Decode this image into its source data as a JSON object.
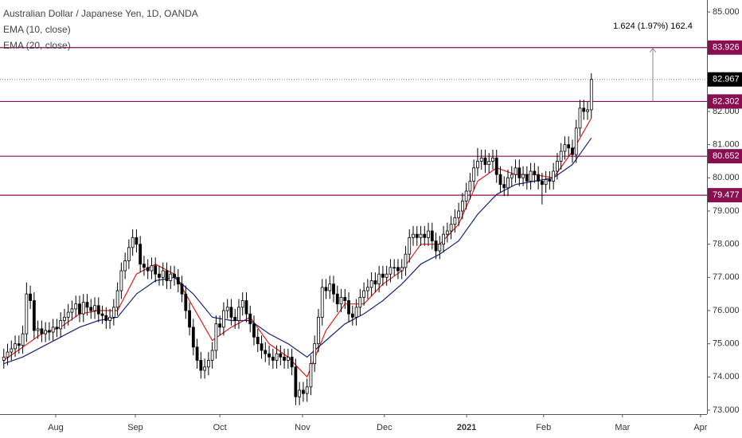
{
  "chart_data": {
    "type": "candlestick",
    "title": "Australian Dollar / Japanese Yen, 1D, OANDA",
    "up_color": "#ffffff",
    "down_color": "#000000",
    "edge_color": "#000000",
    "open": [
      74.5,
      74.6,
      74.75,
      74.85,
      75.0,
      74.95,
      75.3,
      76.5,
      76.3,
      75.4,
      75.45,
      75.3,
      75.4,
      75.35,
      75.5,
      75.45,
      75.7,
      75.8,
      75.95,
      76.05,
      76.2,
      75.9,
      76.25,
      76.1,
      76.0,
      76.15,
      75.9,
      75.85,
      75.7,
      75.8,
      76.1,
      76.6,
      77.2,
      77.5,
      77.9,
      78.2,
      78.0,
      77.4,
      77.3,
      77.2,
      77.35,
      77.1,
      77.0,
      77.2,
      76.9,
      77.1,
      77.0,
      76.8,
      76.5,
      76.0,
      75.5,
      74.9,
      74.5,
      74.2,
      74.3,
      74.5,
      74.8,
      75.6,
      75.5,
      76.0,
      76.1,
      75.8,
      75.7,
      76.1,
      76.3,
      75.9,
      75.6,
      75.2,
      75.0,
      74.8,
      74.7,
      74.6,
      74.5,
      74.7,
      74.6,
      74.5,
      74.6,
      74.3,
      73.4,
      73.6,
      73.5,
      73.7,
      74.4,
      75.0,
      75.8,
      76.7,
      76.6,
      76.8,
      76.5,
      76.2,
      76.4,
      76.3,
      75.9,
      75.8,
      76.1,
      76.4,
      76.6,
      76.7,
      76.9,
      76.8,
      77.1,
      77.0,
      77.1,
      77.3,
      77.3,
      77.2,
      77.3,
      77.7,
      78.2,
      78.3,
      78.2,
      78.3,
      78.2,
      78.4,
      78.1,
      77.8,
      78.0,
      78.3,
      78.4,
      78.6,
      78.8,
      79.0,
      79.3,
      79.6,
      79.9,
      80.3,
      80.5,
      80.6,
      80.4,
      80.5,
      80.6,
      80.1,
      79.8,
      79.7,
      80.0,
      80.1,
      80.3,
      80.0,
      80.1,
      79.9,
      80.2,
      80.1,
      79.9,
      79.8,
      79.95,
      79.9,
      80.2,
      80.5,
      80.8,
      81.0,
      80.9,
      80.7,
      81.5,
      82.1,
      82.0,
      82.05
    ],
    "high": [
      74.85,
      75.0,
      75.1,
      75.25,
      75.25,
      75.55,
      76.85,
      76.75,
      76.55,
      75.7,
      75.7,
      75.65,
      75.65,
      75.75,
      75.75,
      75.95,
      76.05,
      76.2,
      76.3,
      76.45,
      76.45,
      76.5,
      76.5,
      76.35,
      76.4,
      76.4,
      76.15,
      76.1,
      76.05,
      76.35,
      76.85,
      77.45,
      77.75,
      78.15,
      78.45,
      78.45,
      78.25,
      77.65,
      77.55,
      77.6,
      77.6,
      77.35,
      77.45,
      77.45,
      77.35,
      77.35,
      77.25,
      77.05,
      76.75,
      76.25,
      75.75,
      75.15,
      74.75,
      74.55,
      74.75,
      75.05,
      75.85,
      75.85,
      76.25,
      76.35,
      76.35,
      76.05,
      76.35,
      76.55,
      76.55,
      76.15,
      75.85,
      75.45,
      75.25,
      75.05,
      74.95,
      74.85,
      74.95,
      74.95,
      74.85,
      74.85,
      74.85,
      74.55,
      73.85,
      73.85,
      73.95,
      74.65,
      75.25,
      76.05,
      76.95,
      76.95,
      77.05,
      77.05,
      76.75,
      76.65,
      76.65,
      76.55,
      76.15,
      76.35,
      76.65,
      76.85,
      76.95,
      77.15,
      77.15,
      77.35,
      77.35,
      77.35,
      77.55,
      77.55,
      77.55,
      77.55,
      77.95,
      78.45,
      78.55,
      78.55,
      78.55,
      78.55,
      78.65,
      78.65,
      78.35,
      78.25,
      78.55,
      78.65,
      78.85,
      79.05,
      79.25,
      79.55,
      79.85,
      80.15,
      80.55,
      80.9,
      80.85,
      80.85,
      80.75,
      80.85,
      80.85,
      80.35,
      80.05,
      80.25,
      80.35,
      80.55,
      80.55,
      80.35,
      80.35,
      80.45,
      80.45,
      80.35,
      80.15,
      80.2,
      80.2,
      80.45,
      80.75,
      81.05,
      81.25,
      81.25,
      81.15,
      81.75,
      82.35,
      82.35,
      82.3,
      83.15
    ],
    "low": [
      74.25,
      74.35,
      74.5,
      74.6,
      74.7,
      74.7,
      75.05,
      76.05,
      75.15,
      75.15,
      75.05,
      75.05,
      75.1,
      75.1,
      75.2,
      75.2,
      75.45,
      75.55,
      75.7,
      75.8,
      75.65,
      75.65,
      75.85,
      75.75,
      75.75,
      75.65,
      75.6,
      75.45,
      75.45,
      75.55,
      75.85,
      76.35,
      76.95,
      77.25,
      77.65,
      77.75,
      77.15,
      77.05,
      76.95,
      76.95,
      76.85,
      76.75,
      76.75,
      76.65,
      76.65,
      76.75,
      76.55,
      76.25,
      75.75,
      75.25,
      74.65,
      74.25,
      73.95,
      73.95,
      74.05,
      74.25,
      74.55,
      75.25,
      75.25,
      75.75,
      75.55,
      75.45,
      75.45,
      75.85,
      75.65,
      75.35,
      74.95,
      74.75,
      74.55,
      74.45,
      74.35,
      74.25,
      74.25,
      74.35,
      74.25,
      74.25,
      74.05,
      73.15,
      73.15,
      73.25,
      73.25,
      73.45,
      74.15,
      74.75,
      75.55,
      76.35,
      76.35,
      76.25,
      75.95,
      75.95,
      76.05,
      75.65,
      75.55,
      75.55,
      75.85,
      76.15,
      76.35,
      76.45,
      76.55,
      76.55,
      76.75,
      76.75,
      76.85,
      77.05,
      76.95,
      76.95,
      77.05,
      77.45,
      77.95,
      77.95,
      77.95,
      77.95,
      77.95,
      77.85,
      77.55,
      77.55,
      77.75,
      78.05,
      78.15,
      78.35,
      78.55,
      78.75,
      79.05,
      79.35,
      79.65,
      80.05,
      80.25,
      80.15,
      80.15,
      80.25,
      79.85,
      79.55,
      79.45,
      79.45,
      79.75,
      79.85,
      79.75,
      79.75,
      79.65,
      79.65,
      79.85,
      79.65,
      79.2,
      79.55,
      79.65,
      79.65,
      79.95,
      80.25,
      80.55,
      80.65,
      80.45,
      80.45,
      81.25,
      81.75,
      81.75,
      81.8
    ],
    "close": [
      74.6,
      74.75,
      74.85,
      75.0,
      74.95,
      75.3,
      76.5,
      76.3,
      75.4,
      75.45,
      75.3,
      75.4,
      75.35,
      75.5,
      75.45,
      75.7,
      75.8,
      75.95,
      76.05,
      76.2,
      75.9,
      76.25,
      76.1,
      76.0,
      76.15,
      75.9,
      75.85,
      75.7,
      75.8,
      76.1,
      76.6,
      77.2,
      77.5,
      77.9,
      78.2,
      78.0,
      77.4,
      77.3,
      77.2,
      77.35,
      77.1,
      77.0,
      77.2,
      76.9,
      77.1,
      77.0,
      76.8,
      76.5,
      76.0,
      75.5,
      74.9,
      74.5,
      74.2,
      74.3,
      74.5,
      74.8,
      75.6,
      75.5,
      76.0,
      76.1,
      75.8,
      75.7,
      76.1,
      76.3,
      75.9,
      75.6,
      75.2,
      75.0,
      74.8,
      74.7,
      74.6,
      74.5,
      74.7,
      74.6,
      74.5,
      74.6,
      74.3,
      73.4,
      73.6,
      73.5,
      73.7,
      74.4,
      75.0,
      75.8,
      76.7,
      76.6,
      76.8,
      76.5,
      76.2,
      76.4,
      76.3,
      75.9,
      75.8,
      76.1,
      76.4,
      76.6,
      76.7,
      76.9,
      76.8,
      77.1,
      77.0,
      77.1,
      77.3,
      77.3,
      77.2,
      77.3,
      77.7,
      78.2,
      78.3,
      78.2,
      78.3,
      78.2,
      78.4,
      78.1,
      77.8,
      78.0,
      78.3,
      78.4,
      78.6,
      78.8,
      79.0,
      79.3,
      79.6,
      79.9,
      80.3,
      80.5,
      80.6,
      80.4,
      80.5,
      80.6,
      80.1,
      79.8,
      79.7,
      80.0,
      80.1,
      80.3,
      80.0,
      80.1,
      79.9,
      80.2,
      80.1,
      79.9,
      79.8,
      79.95,
      79.9,
      80.2,
      80.5,
      80.8,
      81.0,
      80.9,
      80.7,
      81.5,
      82.1,
      82.0,
      82.05,
      82.967
    ],
    "series": [
      {
        "name": "EMA (10, close)",
        "color": "#e01e1e",
        "x": [
          0,
          5,
          10,
          15,
          20,
          25,
          30,
          35,
          40,
          45,
          50,
          55,
          60,
          65,
          70,
          75,
          80,
          85,
          90,
          95,
          100,
          105,
          110,
          115,
          120,
          125,
          130,
          135,
          140,
          145,
          150,
          155
        ],
        "values": [
          74.5,
          74.9,
          75.3,
          75.5,
          75.9,
          76.0,
          76.0,
          77.1,
          77.4,
          77.1,
          76.1,
          75.1,
          75.5,
          75.8,
          75.0,
          74.6,
          74.0,
          75.4,
          76.2,
          76.2,
          76.8,
          77.2,
          78.0,
          78.0,
          78.6,
          79.9,
          80.3,
          80.1,
          80.1,
          80.0,
          80.8,
          81.8
        ]
      },
      {
        "name": "EMA (20, close)",
        "color": "#1a237e",
        "x": [
          0,
          5,
          10,
          15,
          20,
          25,
          30,
          35,
          40,
          45,
          50,
          55,
          60,
          65,
          70,
          75,
          80,
          85,
          90,
          95,
          100,
          105,
          110,
          115,
          120,
          125,
          130,
          135,
          140,
          145,
          150,
          155
        ],
        "values": [
          74.4,
          74.6,
          74.9,
          75.2,
          75.5,
          75.7,
          75.8,
          76.5,
          76.9,
          77.0,
          76.5,
          75.8,
          75.7,
          75.7,
          75.3,
          75.0,
          74.6,
          75.1,
          75.6,
          75.9,
          76.3,
          76.8,
          77.4,
          77.7,
          78.1,
          78.9,
          79.5,
          79.8,
          79.9,
          80.0,
          80.4,
          81.2
        ]
      }
    ],
    "xlim": [
      -1,
      185.5
    ],
    "xticks": [
      {
        "value": 13.7,
        "label": "Aug"
      },
      {
        "value": 34.7,
        "label": "Sep"
      },
      {
        "value": 57,
        "label": "Oct"
      },
      {
        "value": 78.8,
        "label": "Nov"
      },
      {
        "value": 100.4,
        "label": "Dec"
      },
      {
        "value": 122.1,
        "label": "2021"
      },
      {
        "value": 142.4,
        "label": "Feb"
      },
      {
        "value": 163.2,
        "label": "Mar"
      },
      {
        "value": 183.8,
        "label": "Apr"
      }
    ],
    "ylim": [
      72.88,
      85.36
    ],
    "yticks": [
      {
        "value": 73,
        "label": "73.000"
      },
      {
        "value": 74,
        "label": "74.000"
      },
      {
        "value": 75,
        "label": "75.000"
      },
      {
        "value": 76,
        "label": "76.000"
      },
      {
        "value": 77,
        "label": "77.000"
      },
      {
        "value": 78,
        "label": "78.000"
      },
      {
        "value": 79,
        "label": "79.000"
      },
      {
        "value": 80,
        "label": "80.000"
      },
      {
        "value": 81,
        "label": "81.000"
      },
      {
        "value": 82,
        "label": "82.000"
      },
      {
        "value": 85,
        "label": "85.000"
      }
    ],
    "hlines": [
      83.926,
      82.302,
      80.652,
      79.477
    ],
    "hline_color": "#880e4f",
    "measure": {
      "label": "1.624 (1.97%) 162.4",
      "from": 82.302,
      "to": 83.926
    }
  }
}
